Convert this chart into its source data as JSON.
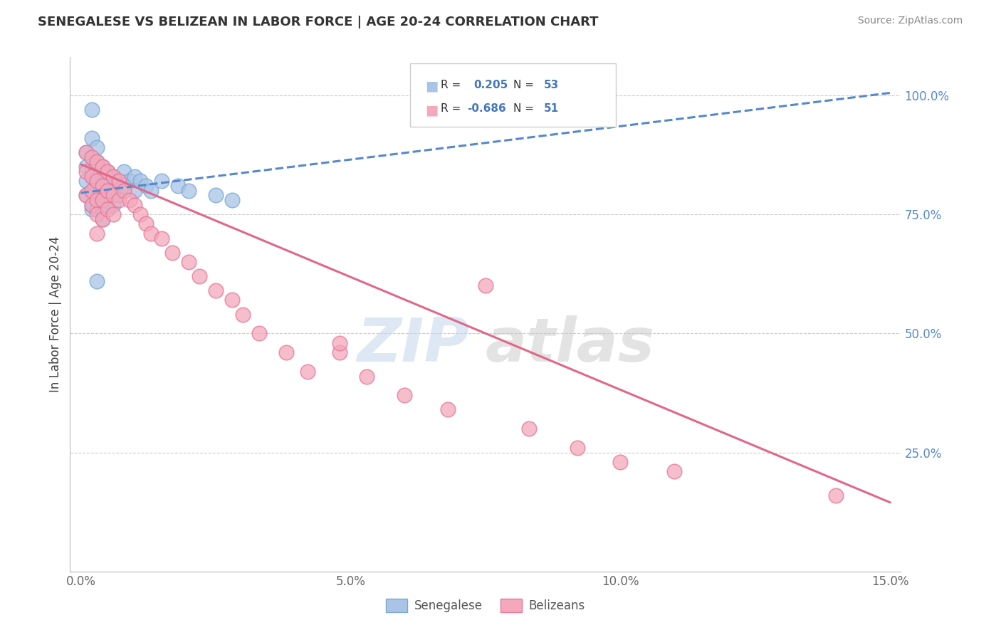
{
  "title": "SENEGALESE VS BELIZEAN IN LABOR FORCE | AGE 20-24 CORRELATION CHART",
  "source": "Source: ZipAtlas.com",
  "ylabel": "In Labor Force | Age 20-24",
  "xlim": [
    -0.002,
    0.152
  ],
  "ylim": [
    0.0,
    1.08
  ],
  "xticks": [
    0.0,
    0.05,
    0.1,
    0.15
  ],
  "xticklabels": [
    "0.0%",
    "5.0%",
    "10.0%",
    "15.0%"
  ],
  "yticks": [
    0.25,
    0.5,
    0.75,
    1.0
  ],
  "yticklabels": [
    "25.0%",
    "50.0%",
    "75.0%",
    "100.0%"
  ],
  "blue_color": "#aac4e8",
  "pink_color": "#f4a8bc",
  "blue_edge_color": "#7aaad0",
  "pink_edge_color": "#e87898",
  "blue_line_color": "#5588cc",
  "pink_line_color": "#e06888",
  "watermark_zip": "ZIP",
  "watermark_atlas": "atlas",
  "background_color": "#ffffff",
  "grid_color": "#cccccc",
  "senegalese_x": [
    0.001,
    0.001,
    0.001,
    0.001,
    0.002,
    0.002,
    0.002,
    0.002,
    0.002,
    0.002,
    0.002,
    0.003,
    0.003,
    0.003,
    0.003,
    0.003,
    0.003,
    0.003,
    0.003,
    0.003,
    0.004,
    0.004,
    0.004,
    0.004,
    0.004,
    0.004,
    0.004,
    0.004,
    0.005,
    0.005,
    0.005,
    0.005,
    0.005,
    0.006,
    0.006,
    0.006,
    0.007,
    0.007,
    0.008,
    0.008,
    0.009,
    0.01,
    0.01,
    0.011,
    0.012,
    0.013,
    0.015,
    0.018,
    0.02,
    0.025,
    0.028,
    0.003,
    0.002
  ],
  "senegalese_y": [
    0.82,
    0.85,
    0.88,
    0.79,
    0.83,
    0.87,
    0.8,
    0.76,
    0.91,
    0.84,
    0.77,
    0.86,
    0.83,
    0.8,
    0.78,
    0.76,
    0.89,
    0.82,
    0.79,
    0.76,
    0.85,
    0.82,
    0.8,
    0.78,
    0.76,
    0.74,
    0.83,
    0.8,
    0.84,
    0.82,
    0.8,
    0.78,
    0.76,
    0.83,
    0.8,
    0.77,
    0.82,
    0.79,
    0.84,
    0.81,
    0.82,
    0.83,
    0.8,
    0.82,
    0.81,
    0.8,
    0.82,
    0.81,
    0.8,
    0.79,
    0.78,
    0.61,
    0.97
  ],
  "belizean_x": [
    0.001,
    0.001,
    0.001,
    0.002,
    0.002,
    0.002,
    0.002,
    0.003,
    0.003,
    0.003,
    0.003,
    0.003,
    0.004,
    0.004,
    0.004,
    0.004,
    0.005,
    0.005,
    0.005,
    0.006,
    0.006,
    0.006,
    0.007,
    0.007,
    0.008,
    0.009,
    0.01,
    0.011,
    0.012,
    0.013,
    0.015,
    0.017,
    0.02,
    0.022,
    0.025,
    0.028,
    0.03,
    0.033,
    0.038,
    0.042,
    0.048,
    0.053,
    0.06,
    0.068,
    0.075,
    0.083,
    0.092,
    0.048,
    0.1,
    0.11,
    0.14
  ],
  "belizean_y": [
    0.88,
    0.84,
    0.79,
    0.87,
    0.83,
    0.8,
    0.77,
    0.86,
    0.82,
    0.78,
    0.75,
    0.71,
    0.85,
    0.81,
    0.78,
    0.74,
    0.84,
    0.8,
    0.76,
    0.83,
    0.79,
    0.75,
    0.82,
    0.78,
    0.8,
    0.78,
    0.77,
    0.75,
    0.73,
    0.71,
    0.7,
    0.67,
    0.65,
    0.62,
    0.59,
    0.57,
    0.54,
    0.5,
    0.46,
    0.42,
    0.46,
    0.41,
    0.37,
    0.34,
    0.6,
    0.3,
    0.26,
    0.48,
    0.23,
    0.21,
    0.16
  ],
  "blue_trend_x0": 0.0,
  "blue_trend_y0": 0.795,
  "blue_trend_x1": 0.15,
  "blue_trend_y1": 1.005,
  "pink_trend_x0": 0.0,
  "pink_trend_y0": 0.855,
  "pink_trend_x1": 0.15,
  "pink_trend_y1": 0.145
}
